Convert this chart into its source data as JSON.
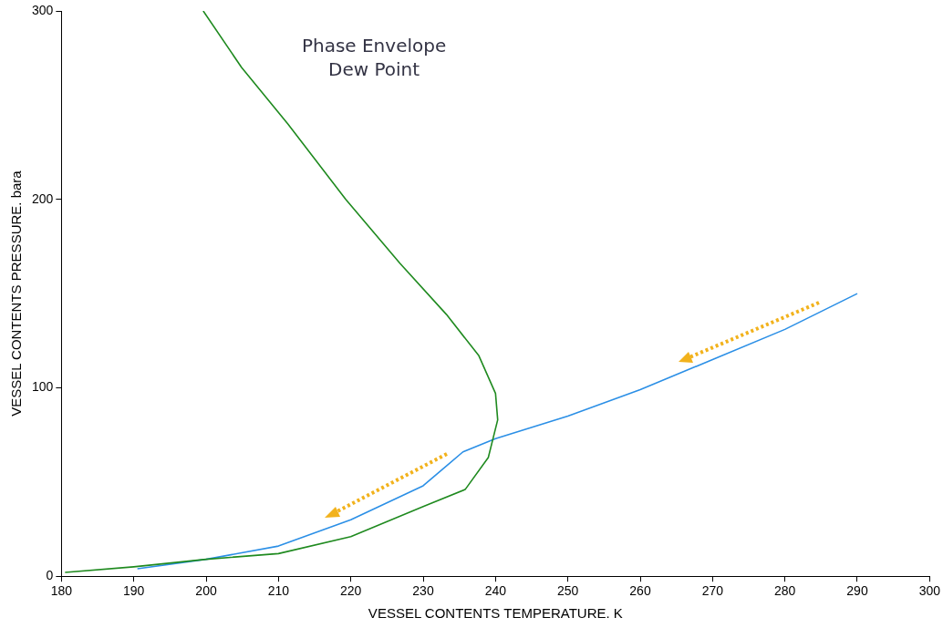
{
  "chart_data": {
    "type": "line",
    "xlabel": "VESSEL CONTENTS TEMPERATURE. K",
    "ylabel": "VESSEL CONTENTS PRESSURE. bara",
    "annotations": [
      "Phase Envelope\nDew Point"
    ],
    "xlim": [
      180,
      300
    ],
    "xticks": [
      180,
      190,
      200,
      210,
      220,
      230,
      240,
      250,
      260,
      270,
      280,
      290,
      300
    ],
    "ylim": [
      0,
      300
    ],
    "yticks": [
      0,
      100,
      200,
      300
    ],
    "grid": false,
    "legend": false,
    "marker": "none",
    "line_style": "solid",
    "series": [
      {
        "color": "#1f8a1f",
        "x": [
          199.6,
          204.9,
          211.3,
          219.3,
          226.8,
          233.2,
          237.7,
          240,
          240.3,
          239,
          235.8,
          230,
          220,
          210,
          200,
          190,
          180.5
        ],
        "values": [
          300,
          270,
          240,
          200,
          166,
          139,
          117,
          97,
          83,
          63,
          46,
          37,
          21,
          12,
          9,
          5,
          2
        ]
      },
      {
        "color": "#2b8fe6",
        "x": [
          190.5,
          200,
          210,
          220,
          230,
          235.5,
          240,
          250,
          260,
          270,
          280,
          290
        ],
        "values": [
          4,
          9,
          16,
          30,
          48,
          66,
          73,
          85,
          99,
          115,
          131,
          150
        ]
      }
    ]
  }
}
